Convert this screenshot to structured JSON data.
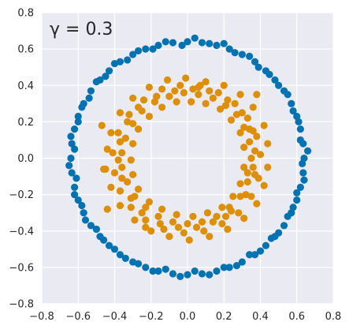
{
  "chart_data": {
    "type": "scatter",
    "title": "",
    "xlabel": "",
    "ylabel": "",
    "xlim": [
      -0.8,
      0.8
    ],
    "ylim": [
      -0.8,
      0.8
    ],
    "xticks": [
      -0.8,
      -0.6,
      -0.4,
      -0.2,
      0.0,
      0.2,
      0.4,
      0.6,
      0.8
    ],
    "yticks": [
      -0.8,
      -0.6,
      -0.4,
      -0.2,
      0.0,
      0.2,
      0.4,
      0.6,
      0.8
    ],
    "xtick_labels": [
      "−0.8",
      "−0.6",
      "−0.4",
      "−0.2",
      "0.0",
      "0.2",
      "0.4",
      "0.6",
      "0.8"
    ],
    "ytick_labels": [
      "−0.8",
      "−0.6",
      "−0.4",
      "−0.2",
      "0.0",
      "0.2",
      "0.4",
      "0.6",
      "0.8"
    ],
    "grid": true,
    "background_color": "#eaeaf2",
    "annotation": "γ = 0.3",
    "series": [
      {
        "color": "#0173b2",
        "points": [
          [
            0.64,
            0.0
          ],
          [
            0.635,
            0.08
          ],
          [
            0.62,
            0.16
          ],
          [
            0.6,
            0.23
          ],
          [
            0.57,
            0.3
          ],
          [
            0.53,
            0.37
          ],
          [
            0.48,
            0.43
          ],
          [
            0.43,
            0.48
          ],
          [
            0.37,
            0.53
          ],
          [
            0.3,
            0.57
          ],
          [
            0.23,
            0.6
          ],
          [
            0.16,
            0.62
          ],
          [
            0.08,
            0.635
          ],
          [
            0.0,
            0.64
          ],
          [
            -0.08,
            0.635
          ],
          [
            -0.16,
            0.62
          ],
          [
            -0.23,
            0.6
          ],
          [
            -0.3,
            0.57
          ],
          [
            -0.37,
            0.53
          ],
          [
            -0.43,
            0.48
          ],
          [
            -0.48,
            0.43
          ],
          [
            -0.53,
            0.37
          ],
          [
            -0.57,
            0.3
          ],
          [
            -0.6,
            0.23
          ],
          [
            -0.62,
            0.16
          ],
          [
            -0.635,
            0.08
          ],
          [
            -0.64,
            0.0
          ],
          [
            -0.635,
            -0.08
          ],
          [
            -0.62,
            -0.16
          ],
          [
            -0.6,
            -0.23
          ],
          [
            -0.57,
            -0.3
          ],
          [
            -0.53,
            -0.37
          ],
          [
            -0.48,
            -0.43
          ],
          [
            -0.43,
            -0.48
          ],
          [
            -0.37,
            -0.53
          ],
          [
            -0.3,
            -0.57
          ],
          [
            -0.23,
            -0.6
          ],
          [
            -0.16,
            -0.62
          ],
          [
            -0.08,
            -0.635
          ],
          [
            0.0,
            -0.64
          ],
          [
            0.08,
            -0.635
          ],
          [
            0.16,
            -0.62
          ],
          [
            0.23,
            -0.6
          ],
          [
            0.3,
            -0.57
          ],
          [
            0.37,
            -0.53
          ],
          [
            0.43,
            -0.48
          ],
          [
            0.48,
            -0.43
          ],
          [
            0.53,
            -0.37
          ],
          [
            0.57,
            -0.3
          ],
          [
            0.6,
            -0.23
          ],
          [
            0.62,
            -0.16
          ],
          [
            0.635,
            -0.08
          ],
          [
            0.66,
            0.04
          ],
          [
            0.61,
            0.2
          ],
          [
            0.55,
            0.35
          ],
          [
            0.45,
            0.46
          ],
          [
            0.34,
            0.56
          ],
          [
            0.2,
            0.63
          ],
          [
            0.04,
            0.66
          ],
          [
            -0.12,
            0.64
          ],
          [
            -0.27,
            0.59
          ],
          [
            -0.4,
            0.52
          ],
          [
            -0.5,
            0.42
          ],
          [
            -0.58,
            0.28
          ],
          [
            -0.64,
            0.12
          ],
          [
            -0.65,
            -0.04
          ],
          [
            -0.62,
            -0.2
          ],
          [
            -0.56,
            -0.34
          ],
          [
            -0.46,
            -0.45
          ],
          [
            -0.34,
            -0.55
          ],
          [
            -0.19,
            -0.62
          ],
          [
            -0.04,
            -0.65
          ],
          [
            0.12,
            -0.64
          ],
          [
            0.27,
            -0.59
          ],
          [
            0.4,
            -0.51
          ],
          [
            0.5,
            -0.41
          ],
          [
            0.58,
            -0.27
          ],
          [
            0.64,
            -0.12
          ],
          [
            0.62,
            0.1
          ],
          [
            0.58,
            0.26
          ],
          [
            0.5,
            0.4
          ],
          [
            0.39,
            0.5
          ],
          [
            0.26,
            0.58
          ],
          [
            0.12,
            0.63
          ],
          [
            -0.03,
            0.62
          ],
          [
            -0.19,
            0.6
          ],
          [
            -0.33,
            0.54
          ],
          [
            -0.45,
            0.45
          ],
          [
            -0.54,
            0.33
          ],
          [
            -0.6,
            0.2
          ],
          [
            -0.62,
            0.05
          ],
          [
            -0.61,
            -0.11
          ],
          [
            -0.58,
            -0.26
          ],
          [
            -0.5,
            -0.39
          ],
          [
            -0.4,
            -0.5
          ],
          [
            -0.27,
            -0.58
          ],
          [
            -0.12,
            -0.61
          ],
          [
            0.04,
            -0.62
          ],
          [
            0.2,
            -0.6
          ],
          [
            0.34,
            -0.53
          ],
          [
            0.46,
            -0.44
          ],
          [
            0.55,
            -0.32
          ],
          [
            0.6,
            -0.19
          ],
          [
            0.63,
            -0.03
          ]
        ]
      },
      {
        "color": "#de8f05",
        "points": [
          [
            0.35,
            0.0
          ],
          [
            0.34,
            0.09
          ],
          [
            0.31,
            0.17
          ],
          [
            0.27,
            0.24
          ],
          [
            0.21,
            0.29
          ],
          [
            0.14,
            0.33
          ],
          [
            0.06,
            0.35
          ],
          [
            -0.02,
            0.36
          ],
          [
            -0.1,
            0.34
          ],
          [
            -0.18,
            0.31
          ],
          [
            -0.25,
            0.26
          ],
          [
            -0.3,
            0.19
          ],
          [
            -0.34,
            0.11
          ],
          [
            -0.36,
            0.03
          ],
          [
            -0.36,
            -0.05
          ],
          [
            -0.33,
            -0.13
          ],
          [
            -0.29,
            -0.21
          ],
          [
            -0.23,
            -0.27
          ],
          [
            -0.16,
            -0.32
          ],
          [
            -0.08,
            -0.35
          ],
          [
            0.0,
            -0.36
          ],
          [
            0.08,
            -0.35
          ],
          [
            0.16,
            -0.32
          ],
          [
            0.23,
            -0.27
          ],
          [
            0.29,
            -0.21
          ],
          [
            0.33,
            -0.13
          ],
          [
            0.36,
            -0.05
          ],
          [
            0.4,
            0.02
          ],
          [
            0.38,
            0.12
          ],
          [
            0.33,
            0.22
          ],
          [
            0.26,
            0.3
          ],
          [
            0.17,
            0.36
          ],
          [
            0.07,
            0.4
          ],
          [
            -0.04,
            0.4
          ],
          [
            -0.14,
            0.38
          ],
          [
            -0.24,
            0.32
          ],
          [
            -0.32,
            0.24
          ],
          [
            -0.38,
            0.14
          ],
          [
            -0.41,
            0.03
          ],
          [
            -0.4,
            -0.08
          ],
          [
            -0.37,
            -0.18
          ],
          [
            -0.31,
            -0.27
          ],
          [
            -0.23,
            -0.34
          ],
          [
            -0.13,
            -0.39
          ],
          [
            -0.02,
            -0.41
          ],
          [
            0.09,
            -0.4
          ],
          [
            0.19,
            -0.36
          ],
          [
            0.28,
            -0.3
          ],
          [
            0.35,
            -0.21
          ],
          [
            0.39,
            -0.11
          ],
          [
            0.31,
            0.06
          ],
          [
            0.29,
            0.14
          ],
          [
            0.24,
            0.21
          ],
          [
            0.18,
            0.27
          ],
          [
            0.1,
            0.3
          ],
          [
            0.02,
            0.31
          ],
          [
            -0.06,
            0.31
          ],
          [
            -0.14,
            0.28
          ],
          [
            -0.21,
            0.23
          ],
          [
            -0.27,
            0.16
          ],
          [
            -0.3,
            0.08
          ],
          [
            -0.31,
            -0.01
          ],
          [
            -0.3,
            -0.09
          ],
          [
            -0.27,
            -0.17
          ],
          [
            -0.21,
            -0.24
          ],
          [
            -0.14,
            -0.28
          ],
          [
            -0.06,
            -0.31
          ],
          [
            0.03,
            -0.32
          ],
          [
            0.11,
            -0.3
          ],
          [
            0.19,
            -0.27
          ],
          [
            0.25,
            -0.21
          ],
          [
            0.29,
            -0.14
          ],
          [
            0.31,
            -0.05
          ],
          [
            0.44,
            0.08
          ],
          [
            0.42,
            0.18
          ],
          [
            0.36,
            0.28
          ],
          [
            0.29,
            0.35
          ],
          [
            0.2,
            0.4
          ],
          [
            0.1,
            0.42
          ],
          [
            -0.01,
            0.44
          ],
          [
            -0.11,
            0.43
          ],
          [
            -0.21,
            0.39
          ],
          [
            -0.3,
            0.33
          ],
          [
            -0.37,
            0.25
          ],
          [
            -0.42,
            0.14
          ],
          [
            -0.44,
            0.05
          ],
          [
            -0.45,
            -0.06
          ],
          [
            -0.42,
            -0.16
          ],
          [
            -0.37,
            -0.26
          ],
          [
            -0.29,
            -0.34
          ],
          [
            -0.2,
            -0.4
          ],
          [
            -0.1,
            -0.43
          ],
          [
            0.01,
            -0.45
          ],
          [
            0.12,
            -0.43
          ],
          [
            0.22,
            -0.39
          ],
          [
            0.31,
            -0.33
          ],
          [
            0.38,
            -0.25
          ],
          [
            0.42,
            -0.15
          ],
          [
            0.44,
            -0.05
          ],
          [
            0.37,
            0.04
          ],
          [
            0.36,
            0.15
          ],
          [
            0.3,
            0.25
          ],
          [
            0.22,
            0.32
          ],
          [
            0.12,
            0.37
          ],
          [
            0.03,
            0.38
          ],
          [
            -0.07,
            0.37
          ],
          [
            -0.17,
            0.34
          ],
          [
            -0.27,
            0.28
          ],
          [
            -0.33,
            0.2
          ],
          [
            -0.37,
            0.09
          ],
          [
            -0.38,
            -0.01
          ],
          [
            -0.36,
            -0.11
          ],
          [
            -0.31,
            -0.22
          ],
          [
            -0.25,
            -0.3
          ],
          [
            -0.15,
            -0.36
          ],
          [
            -0.05,
            -0.38
          ],
          [
            0.05,
            -0.38
          ],
          [
            0.14,
            -0.35
          ],
          [
            0.24,
            -0.29
          ],
          [
            0.32,
            -0.2
          ],
          [
            0.37,
            -0.09
          ],
          [
            -0.47,
            0.18
          ],
          [
            -0.46,
            -0.06
          ],
          [
            -0.44,
            -0.28
          ],
          [
            0.38,
            0.35
          ],
          [
            0.34,
            0.16
          ],
          [
            0.33,
            -0.08
          ],
          [
            0.06,
            0.39
          ],
          [
            -0.23,
            -0.38
          ],
          [
            0.21,
            -0.32
          ]
        ]
      }
    ]
  }
}
